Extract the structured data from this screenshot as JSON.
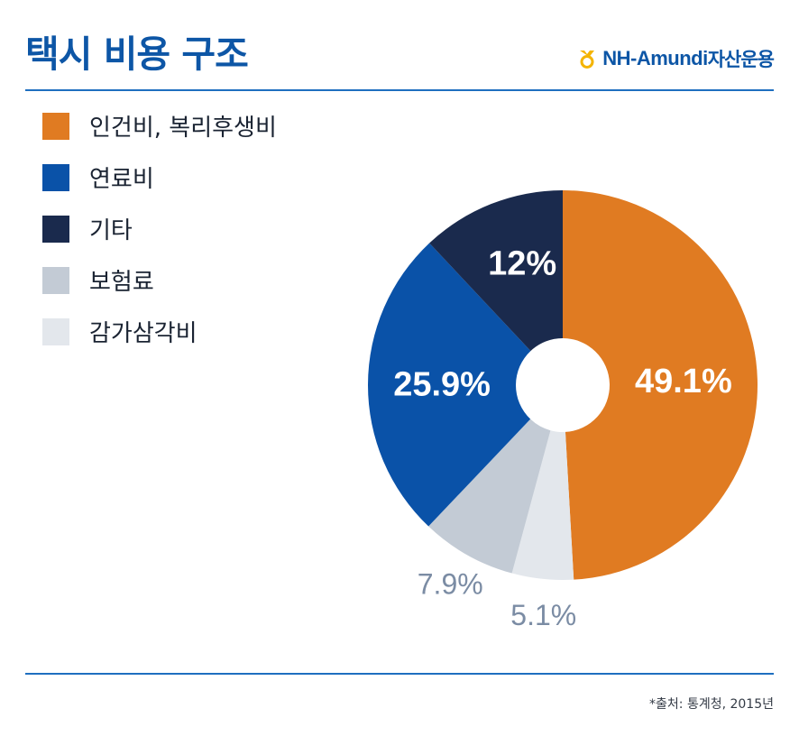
{
  "title": "택시 비용 구조",
  "brand": {
    "name_en": "NH-Amundi",
    "name_ko": "자산운용",
    "color": "#f4b400",
    "icon": "nh-logo-icon"
  },
  "source": "*출처: 통계청, 2015년",
  "chart_data": {
    "type": "pie",
    "style": "donut",
    "title": "택시 비용 구조",
    "legend_position": "top-left",
    "series": [
      {
        "name": "인건비, 복리후생비",
        "value": 49.1,
        "label": "49.1%",
        "color": "#e07b22"
      },
      {
        "name": "보험료",
        "value": 7.9,
        "label": "7.9%",
        "color": "#c3cbd5"
      },
      {
        "name": "감가삼각비",
        "value": 5.1,
        "label": "5.1%",
        "color": "#e3e7ec"
      },
      {
        "name": "연료비",
        "value": 25.9,
        "label": "25.9%",
        "color": "#0a52a8"
      },
      {
        "name": "기타",
        "value": 12,
        "label": "12%",
        "color": "#1a2a4d"
      }
    ],
    "slice_order": [
      "인건비, 복리후생비",
      "감가삼각비",
      "보험료",
      "연료비",
      "기타"
    ],
    "legend": [
      {
        "label": "인건비, 복리후생비",
        "color": "#e07b22"
      },
      {
        "label": "연료비",
        "color": "#0a52a8"
      },
      {
        "label": "기타",
        "color": "#1a2a4d"
      },
      {
        "label": "보험료",
        "color": "#c3cbd5"
      },
      {
        "label": "감가삼각비",
        "color": "#e3e7ec"
      }
    ]
  }
}
